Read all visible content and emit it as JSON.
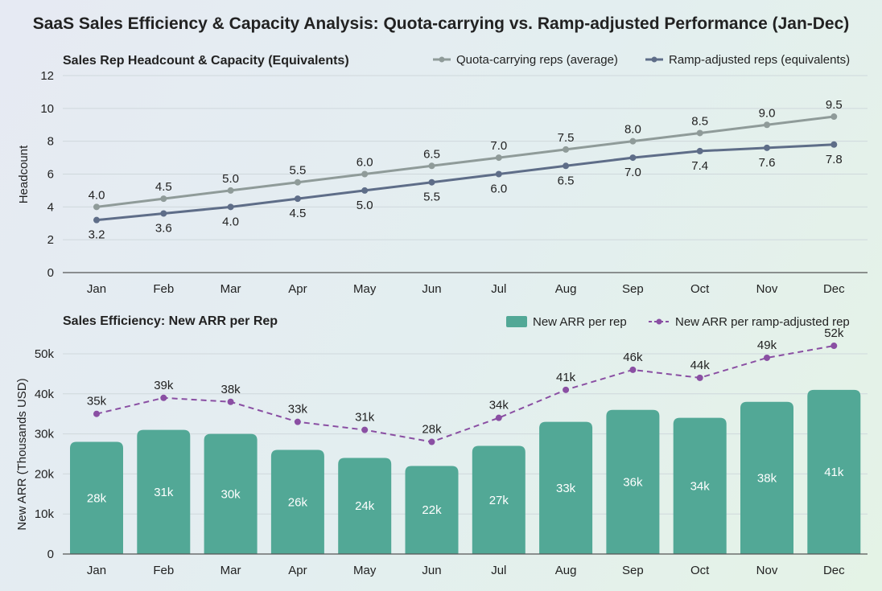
{
  "title": "SaaS Sales Efficiency & Capacity Analysis: Quota-carrying vs. Ramp-adjusted Performance (Jan-Dec)",
  "chart_data": [
    {
      "type": "line",
      "title": "Sales Rep Headcount & Capacity (Equivalents)",
      "xlabel": "",
      "ylabel": "Headcount",
      "ylim": [
        0,
        12
      ],
      "yticks": [
        0,
        2,
        4,
        6,
        8,
        10,
        12
      ],
      "grid": true,
      "legend": "top-right",
      "categories": [
        "Jan",
        "Feb",
        "Mar",
        "Apr",
        "May",
        "Jun",
        "Jul",
        "Aug",
        "Sep",
        "Oct",
        "Nov",
        "Dec"
      ],
      "series": [
        {
          "name": "Quota-carrying reps (average)",
          "color": "#8f9b99",
          "values": [
            4.0,
            4.5,
            5.0,
            5.5,
            6.0,
            6.5,
            7.0,
            7.5,
            8.0,
            8.5,
            9.0,
            9.5
          ],
          "labels": [
            "4.0",
            "4.5",
            "5.0",
            "5.5",
            "6.0",
            "6.5",
            "7.0",
            "7.5",
            "8.0",
            "8.5",
            "9.0",
            "9.5"
          ]
        },
        {
          "name": "Ramp-adjusted reps (equivalents)",
          "color": "#5e6d88",
          "values": [
            3.2,
            3.6,
            4.0,
            4.5,
            5.0,
            5.5,
            6.0,
            6.5,
            7.0,
            7.4,
            7.6,
            7.8
          ],
          "labels": [
            "3.2",
            "3.6",
            "4.0",
            "4.5",
            "5.0",
            "5.5",
            "6.0",
            "6.5",
            "7.0",
            "7.4",
            "7.6",
            "7.8"
          ]
        }
      ]
    },
    {
      "type": "bar",
      "title": "Sales Efficiency: New ARR per Rep",
      "xlabel": "",
      "ylabel": "New ARR (Thousands USD)",
      "ylim": [
        0,
        55
      ],
      "yticks": [
        0,
        10,
        20,
        30,
        40,
        50
      ],
      "ytick_labels": [
        "0",
        "10k",
        "20k",
        "30k",
        "40k",
        "50k"
      ],
      "grid": true,
      "legend": "top-right",
      "categories": [
        "Jan",
        "Feb",
        "Mar",
        "Apr",
        "May",
        "Jun",
        "Jul",
        "Aug",
        "Sep",
        "Oct",
        "Nov",
        "Dec"
      ],
      "series": [
        {
          "name": "New ARR per rep",
          "kind": "bar",
          "color": "#52a896",
          "values": [
            28,
            31,
            30,
            26,
            24,
            22,
            27,
            33,
            36,
            34,
            38,
            41
          ],
          "labels": [
            "28k",
            "31k",
            "30k",
            "26k",
            "24k",
            "22k",
            "27k",
            "33k",
            "36k",
            "34k",
            "38k",
            "41k"
          ]
        },
        {
          "name": "New ARR per ramp-adjusted rep",
          "kind": "dashed-line",
          "color": "#8a4fa3",
          "values": [
            35,
            39,
            38,
            33,
            31,
            28,
            34,
            41,
            46,
            44,
            49,
            52
          ],
          "labels": [
            "35k",
            "39k",
            "38k",
            "33k",
            "31k",
            "28k",
            "34k",
            "41k",
            "46k",
            "44k",
            "49k",
            "52k"
          ]
        }
      ]
    }
  ]
}
